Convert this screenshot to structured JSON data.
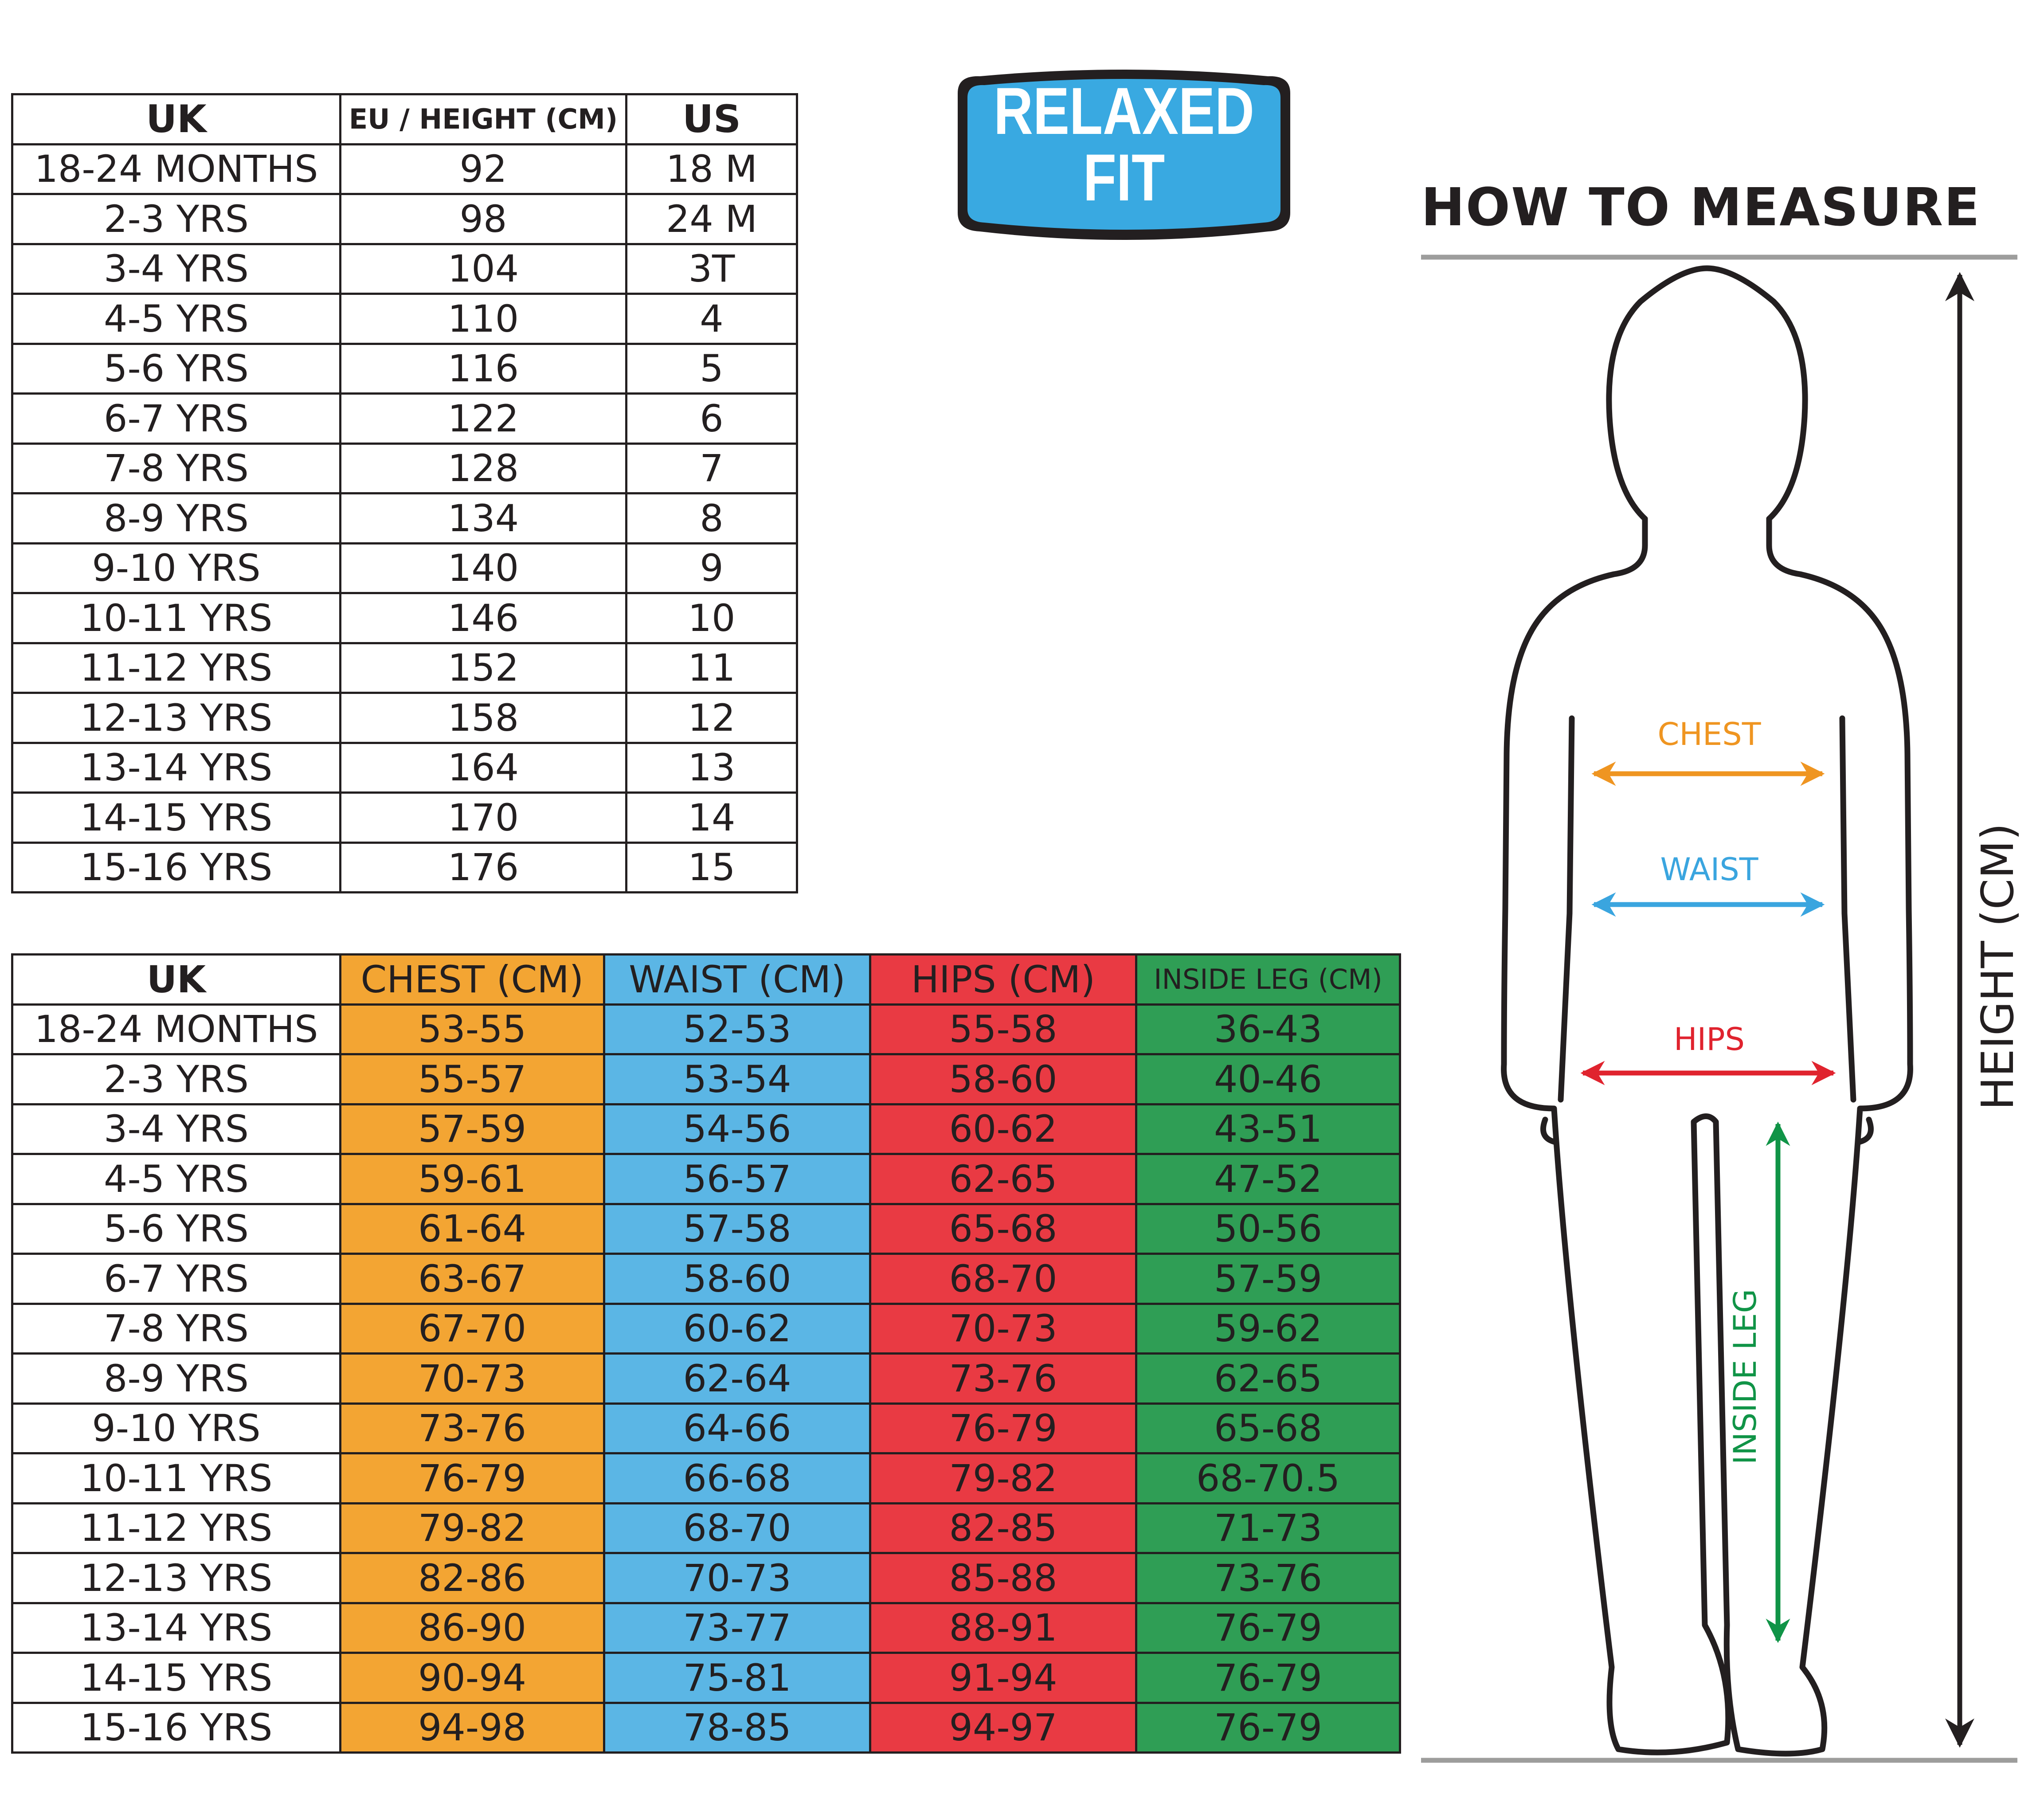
{
  "size_table": {
    "headers": [
      "UK",
      "EU / HEIGHT (CM)",
      "US"
    ],
    "rows": [
      [
        "18-24 MONTHS",
        "92",
        "18 M"
      ],
      [
        "2-3 YRS",
        "98",
        "24 M"
      ],
      [
        "3-4 YRS",
        "104",
        "3T"
      ],
      [
        "4-5 YRS",
        "110",
        "4"
      ],
      [
        "5-6 YRS",
        "116",
        "5"
      ],
      [
        "6-7 YRS",
        "122",
        "6"
      ],
      [
        "7-8 YRS",
        "128",
        "7"
      ],
      [
        "8-9 YRS",
        "134",
        "8"
      ],
      [
        "9-10 YRS",
        "140",
        "9"
      ],
      [
        "10-11 YRS",
        "146",
        "10"
      ],
      [
        "11-12 YRS",
        "152",
        "11"
      ],
      [
        "12-13 YRS",
        "158",
        "12"
      ],
      [
        "13-14 YRS",
        "164",
        "13"
      ],
      [
        "14-15 YRS",
        "170",
        "14"
      ],
      [
        "15-16 YRS",
        "176",
        "15"
      ]
    ]
  },
  "measure_table": {
    "headers": [
      "UK",
      "CHEST (CM)",
      "WAIST (CM)",
      "HIPS (CM)",
      "INSIDE LEG (CM)"
    ],
    "rows": [
      [
        "18-24 MONTHS",
        "53-55",
        "52-53",
        "55-58",
        "36-43"
      ],
      [
        "2-3 YRS",
        "55-57",
        "53-54",
        "58-60",
        "40-46"
      ],
      [
        "3-4 YRS",
        "57-59",
        "54-56",
        "60-62",
        "43-51"
      ],
      [
        "4-5 YRS",
        "59-61",
        "56-57",
        "62-65",
        "47-52"
      ],
      [
        "5-6 YRS",
        "61-64",
        "57-58",
        "65-68",
        "50-56"
      ],
      [
        "6-7 YRS",
        "63-67",
        "58-60",
        "68-70",
        "57-59"
      ],
      [
        "7-8 YRS",
        "67-70",
        "60-62",
        "70-73",
        "59-62"
      ],
      [
        "8-9 YRS",
        "70-73",
        "62-64",
        "73-76",
        "62-65"
      ],
      [
        "9-10 YRS",
        "73-76",
        "64-66",
        "76-79",
        "65-68"
      ],
      [
        "10-11 YRS",
        "76-79",
        "66-68",
        "79-82",
        "68-70.5"
      ],
      [
        "11-12 YRS",
        "79-82",
        "68-70",
        "82-85",
        "71-73"
      ],
      [
        "12-13 YRS",
        "82-86",
        "70-73",
        "85-88",
        "73-76"
      ],
      [
        "13-14 YRS",
        "86-90",
        "73-77",
        "88-91",
        "76-79"
      ],
      [
        "14-15 YRS",
        "90-94",
        "75-81",
        "91-94",
        "76-79"
      ],
      [
        "15-16 YRS",
        "94-98",
        "78-85",
        "94-97",
        "76-79"
      ]
    ]
  },
  "badge": {
    "line1": "RELAXED",
    "line2": "FIT"
  },
  "how_to_measure": {
    "title": "HOW TO MEASURE",
    "chest_label": "CHEST",
    "waist_label": "WAIST",
    "hips_label": "HIPS",
    "inside_leg_label": "INSIDE LEG",
    "height_label": "HEIGHT (CM)"
  },
  "colors": {
    "chest": "#f3a533",
    "waist": "#5bb6e5",
    "hips": "#e93a43",
    "inside_leg": "#2f9e55",
    "badge": "#39a9e1",
    "chest_arrow": "#ef9521",
    "waist_arrow": "#3aa5df",
    "hips_arrow": "#e0232e",
    "leg_arrow": "#109447"
  }
}
